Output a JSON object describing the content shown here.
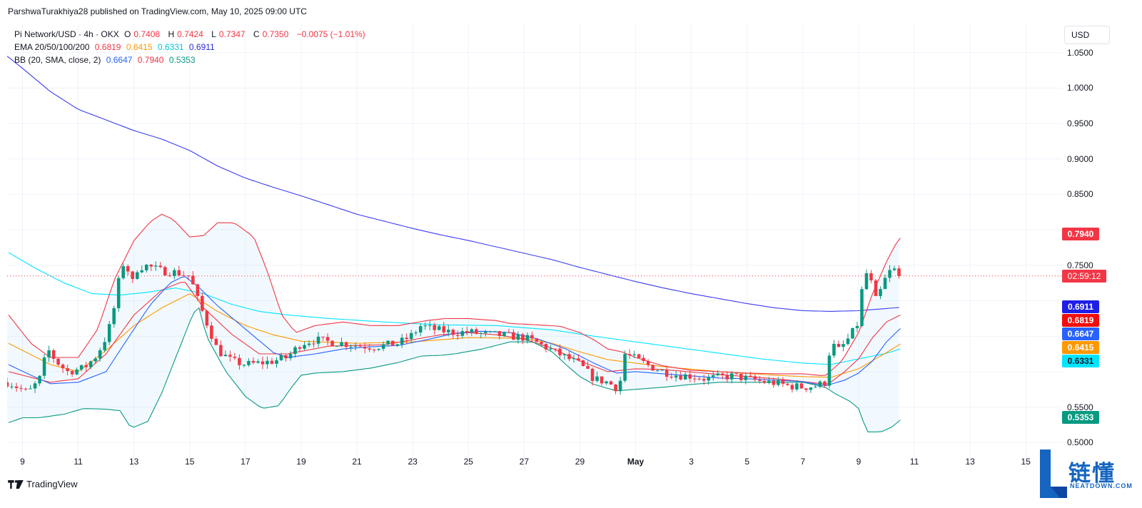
{
  "header": {
    "publisher_line": "ParshwaTurakhiya28 published on TradingView.com, May 10, 2025 09:00 UTC"
  },
  "legend": {
    "symbol": "Pi Network/USD · 4h · OKX",
    "ohlc": [
      {
        "label": "O",
        "value": "0.7408"
      },
      {
        "label": "H",
        "value": "0.7424"
      },
      {
        "label": "L",
        "value": "0.7347"
      },
      {
        "label": "C",
        "value": "0.7350"
      }
    ],
    "change": "−0.0075 (−1.01%)",
    "ema_label": "EMA 20/50/100/200",
    "ema_values": [
      "0.6819",
      "0.6415",
      "0.6331",
      "0.6911"
    ],
    "bb_label": "BB (20, SMA, close, 2)",
    "bb_values": [
      "0.6647",
      "0.7940",
      "0.5353"
    ]
  },
  "currency_button": "USD",
  "colors": {
    "up": "#089981",
    "down": "#f23645",
    "ema20": "#f23645",
    "ema50": "#ff9800",
    "ema100": "#00e5ff",
    "ema200": "#3b3bf5",
    "bb_basis": "#2962ff",
    "bb_upper": "#f23645",
    "bb_lower": "#089981"
  },
  "price_tags": {
    "bb_upper": "0.7940",
    "countdown": "02:59:12",
    "ema200": "0.6911",
    "ema20": "0.6819",
    "bb_basis": "0.6647",
    "ema50": "0.6415",
    "ema100": "0.6331",
    "bb_lower": "0.5353"
  },
  "footer": {
    "brand": "TradingView"
  },
  "watermark": {
    "name_cn": "链懂",
    "name_en": "NEATDOWN.COM"
  },
  "chart_data": {
    "type": "candlestick",
    "title": "Pi Network/USD · 4h · OKX",
    "ylim": [
      0.46,
      1.09
    ],
    "y_ticks": [
      "1.0500",
      "1.0000",
      "0.9500",
      "0.9000",
      "0.8500",
      "0.8000",
      "0.7500",
      "0.7000",
      "0.6500",
      "0.6000",
      "0.5500",
      "0.5000"
    ],
    "y_tick_values": [
      1.05,
      1.0,
      0.95,
      0.9,
      0.85,
      0.8,
      0.75,
      0.7,
      0.65,
      0.6,
      0.55,
      0.5
    ],
    "x_ticks": [
      "9",
      "11",
      "13",
      "15",
      "17",
      "19",
      "21",
      "23",
      "25",
      "27",
      "29",
      "May",
      "3",
      "5",
      "7",
      "9",
      "11",
      "13",
      "15"
    ],
    "x_tick_days": [
      0,
      2,
      4,
      6,
      8,
      10,
      12,
      14,
      16,
      18,
      20,
      22,
      24,
      26,
      28,
      30,
      32,
      34,
      36
    ],
    "x_start_day": -0.55,
    "x_end_day": 37.3,
    "last_price": 0.735,
    "close_anchors": [
      [
        -0.5,
        0.585
      ],
      [
        0.2,
        0.57
      ],
      [
        0.6,
        0.588
      ],
      [
        0.9,
        0.632
      ],
      [
        1.2,
        0.615
      ],
      [
        1.6,
        0.6
      ],
      [
        2.2,
        0.605
      ],
      [
        2.6,
        0.62
      ],
      [
        2.9,
        0.64
      ],
      [
        3.1,
        0.66
      ],
      [
        3.35,
        0.7
      ],
      [
        3.5,
        0.74
      ],
      [
        3.7,
        0.76
      ],
      [
        3.9,
        0.72
      ],
      [
        4.1,
        0.745
      ],
      [
        4.4,
        0.75
      ],
      [
        5,
        0.742
      ],
      [
        5.5,
        0.74
      ],
      [
        6,
        0.735
      ],
      [
        6.3,
        0.7
      ],
      [
        6.6,
        0.67
      ],
      [
        7,
        0.63
      ],
      [
        7.5,
        0.615
      ],
      [
        8,
        0.61
      ],
      [
        8.5,
        0.612
      ],
      [
        9,
        0.615
      ],
      [
        9.5,
        0.62
      ],
      [
        10,
        0.64
      ],
      [
        10.5,
        0.645
      ],
      [
        11,
        0.642
      ],
      [
        11.5,
        0.64
      ],
      [
        12,
        0.637
      ],
      [
        12.5,
        0.635
      ],
      [
        13,
        0.637
      ],
      [
        13.5,
        0.64
      ],
      [
        14,
        0.652
      ],
      [
        14.3,
        0.665
      ],
      [
        14.7,
        0.66
      ],
      [
        15,
        0.658
      ],
      [
        15.5,
        0.655
      ],
      [
        16,
        0.656
      ],
      [
        16.5,
        0.653
      ],
      [
        17,
        0.652
      ],
      [
        17.5,
        0.65
      ],
      [
        18,
        0.648
      ],
      [
        18.5,
        0.64
      ],
      [
        19,
        0.63
      ],
      [
        19.5,
        0.62
      ],
      [
        20,
        0.61
      ],
      [
        20.5,
        0.59
      ],
      [
        21,
        0.585
      ],
      [
        21.4,
        0.575
      ],
      [
        21.6,
        0.625
      ],
      [
        22,
        0.618
      ],
      [
        22.5,
        0.608
      ],
      [
        23,
        0.6
      ],
      [
        23.5,
        0.595
      ],
      [
        24,
        0.594
      ],
      [
        24.5,
        0.59
      ],
      [
        25,
        0.592
      ],
      [
        25.5,
        0.594
      ],
      [
        26,
        0.59
      ],
      [
        26.5,
        0.586
      ],
      [
        27,
        0.584
      ],
      [
        27.5,
        0.58
      ],
      [
        28,
        0.578
      ],
      [
        28.5,
        0.58
      ],
      [
        28.8,
        0.585
      ],
      [
        29.0,
        0.64
      ],
      [
        29.3,
        0.63
      ],
      [
        29.7,
        0.65
      ],
      [
        30,
        0.67
      ],
      [
        30.2,
        0.745
      ],
      [
        30.45,
        0.725
      ],
      [
        30.6,
        0.7
      ],
      [
        30.8,
        0.715
      ],
      [
        31,
        0.735
      ],
      [
        31.2,
        0.745
      ],
      [
        31.35,
        0.742
      ],
      [
        31.5,
        0.74
      ],
      [
        31.6,
        0.735
      ]
    ],
    "ema20_anchors": [
      [
        -0.5,
        0.6
      ],
      [
        1,
        0.585
      ],
      [
        2,
        0.59
      ],
      [
        3,
        0.625
      ],
      [
        4,
        0.68
      ],
      [
        5,
        0.715
      ],
      [
        5.8,
        0.728
      ],
      [
        6.5,
        0.69
      ],
      [
        7.5,
        0.653
      ],
      [
        8.5,
        0.625
      ],
      [
        9.5,
        0.625
      ],
      [
        11,
        0.636
      ],
      [
        13,
        0.638
      ],
      [
        14,
        0.645
      ],
      [
        15,
        0.652
      ],
      [
        16,
        0.655
      ],
      [
        17,
        0.652
      ],
      [
        18,
        0.646
      ],
      [
        19,
        0.633
      ],
      [
        20,
        0.615
      ],
      [
        21,
        0.6
      ],
      [
        22,
        0.604
      ],
      [
        23,
        0.603
      ],
      [
        25,
        0.596
      ],
      [
        27,
        0.59
      ],
      [
        28,
        0.586
      ],
      [
        28.9,
        0.582
      ],
      [
        29.5,
        0.6
      ],
      [
        30,
        0.618
      ],
      [
        30.5,
        0.648
      ],
      [
        31,
        0.67
      ],
      [
        31.6,
        0.6819
      ]
    ],
    "ema50_anchors": [
      [
        -0.5,
        0.64
      ],
      [
        1,
        0.61
      ],
      [
        2,
        0.6
      ],
      [
        3,
        0.63
      ],
      [
        4,
        0.665
      ],
      [
        5,
        0.69
      ],
      [
        6,
        0.71
      ],
      [
        7,
        0.685
      ],
      [
        8,
        0.665
      ],
      [
        9,
        0.652
      ],
      [
        10,
        0.643
      ],
      [
        12,
        0.64
      ],
      [
        14,
        0.642
      ],
      [
        16,
        0.648
      ],
      [
        18,
        0.647
      ],
      [
        19,
        0.64
      ],
      [
        20,
        0.628
      ],
      [
        21,
        0.617
      ],
      [
        22,
        0.612
      ],
      [
        23,
        0.607
      ],
      [
        25,
        0.6
      ],
      [
        27,
        0.595
      ],
      [
        28,
        0.593
      ],
      [
        29,
        0.592
      ],
      [
        30,
        0.604
      ],
      [
        31,
        0.627
      ],
      [
        31.6,
        0.6415
      ]
    ],
    "ema100_anchors": [
      [
        -0.5,
        0.768
      ],
      [
        0.5,
        0.745
      ],
      [
        1.5,
        0.725
      ],
      [
        2.5,
        0.71
      ],
      [
        3.5,
        0.708
      ],
      [
        4.5,
        0.712
      ],
      [
        5.5,
        0.718
      ],
      [
        6.5,
        0.71
      ],
      [
        7.5,
        0.695
      ],
      [
        8.5,
        0.685
      ],
      [
        9.5,
        0.68
      ],
      [
        11,
        0.675
      ],
      [
        13,
        0.67
      ],
      [
        15,
        0.666
      ],
      [
        17,
        0.665
      ],
      [
        19,
        0.659
      ],
      [
        20.5,
        0.65
      ],
      [
        22,
        0.642
      ],
      [
        23.5,
        0.634
      ],
      [
        25,
        0.626
      ],
      [
        26.5,
        0.618
      ],
      [
        28,
        0.612
      ],
      [
        29,
        0.61
      ],
      [
        30,
        0.618
      ],
      [
        31,
        0.626
      ],
      [
        31.6,
        0.6331
      ]
    ],
    "ema200_anchors": [
      [
        -0.55,
        1.045
      ],
      [
        0,
        1.028
      ],
      [
        1,
        0.995
      ],
      [
        2,
        0.97
      ],
      [
        3,
        0.955
      ],
      [
        4,
        0.94
      ],
      [
        5,
        0.928
      ],
      [
        6,
        0.912
      ],
      [
        7,
        0.89
      ],
      [
        8,
        0.873
      ],
      [
        9,
        0.86
      ],
      [
        10,
        0.848
      ],
      [
        11,
        0.835
      ],
      [
        12,
        0.822
      ],
      [
        13,
        0.812
      ],
      [
        14,
        0.802
      ],
      [
        15,
        0.793
      ],
      [
        16,
        0.785
      ],
      [
        17,
        0.776
      ],
      [
        18,
        0.767
      ],
      [
        19,
        0.758
      ],
      [
        20,
        0.747
      ],
      [
        21,
        0.737
      ],
      [
        22,
        0.727
      ],
      [
        23,
        0.718
      ],
      [
        24,
        0.71
      ],
      [
        25,
        0.703
      ],
      [
        26,
        0.696
      ],
      [
        27,
        0.69
      ],
      [
        28,
        0.686
      ],
      [
        29,
        0.685
      ],
      [
        30,
        0.686
      ],
      [
        31,
        0.689
      ],
      [
        31.6,
        0.6911
      ]
    ],
    "bb_upper_anchors": [
      [
        -0.5,
        0.68
      ],
      [
        0.3,
        0.64
      ],
      [
        1,
        0.62
      ],
      [
        2,
        0.62
      ],
      [
        2.7,
        0.66
      ],
      [
        3.3,
        0.73
      ],
      [
        4,
        0.785
      ],
      [
        4.6,
        0.812
      ],
      [
        5,
        0.822
      ],
      [
        5.4,
        0.815
      ],
      [
        6,
        0.79
      ],
      [
        6.5,
        0.792
      ],
      [
        7,
        0.81
      ],
      [
        7.6,
        0.81
      ],
      [
        8.3,
        0.79
      ],
      [
        8.8,
        0.74
      ],
      [
        9.3,
        0.68
      ],
      [
        9.8,
        0.655
      ],
      [
        10.5,
        0.665
      ],
      [
        11.5,
        0.67
      ],
      [
        12.5,
        0.665
      ],
      [
        13.5,
        0.665
      ],
      [
        14.5,
        0.672
      ],
      [
        15.2,
        0.675
      ],
      [
        16,
        0.675
      ],
      [
        17,
        0.672
      ],
      [
        17.5,
        0.668
      ],
      [
        18.5,
        0.666
      ],
      [
        19.3,
        0.664
      ],
      [
        20,
        0.655
      ],
      [
        20.5,
        0.645
      ],
      [
        21,
        0.632
      ],
      [
        21.5,
        0.628
      ],
      [
        22,
        0.62
      ],
      [
        23,
        0.608
      ],
      [
        24,
        0.602
      ],
      [
        25,
        0.6
      ],
      [
        26,
        0.598
      ],
      [
        27,
        0.597
      ],
      [
        28,
        0.597
      ],
      [
        28.8,
        0.594
      ],
      [
        29.4,
        0.615
      ],
      [
        30,
        0.655
      ],
      [
        30.5,
        0.71
      ],
      [
        31,
        0.755
      ],
      [
        31.3,
        0.778
      ],
      [
        31.6,
        0.794
      ]
    ],
    "bb_basis_anchors": [
      [
        -0.5,
        0.61
      ],
      [
        0.3,
        0.595
      ],
      [
        1,
        0.583
      ],
      [
        2,
        0.585
      ],
      [
        3,
        0.6
      ],
      [
        3.5,
        0.63
      ],
      [
        4,
        0.66
      ],
      [
        4.6,
        0.695
      ],
      [
        5.3,
        0.725
      ],
      [
        5.8,
        0.735
      ],
      [
        6.3,
        0.72
      ],
      [
        7,
        0.693
      ],
      [
        8,
        0.66
      ],
      [
        9,
        0.627
      ],
      [
        9.5,
        0.62
      ],
      [
        10.5,
        0.625
      ],
      [
        11.5,
        0.632
      ],
      [
        12.5,
        0.635
      ],
      [
        13.5,
        0.637
      ],
      [
        14.5,
        0.645
      ],
      [
        15.5,
        0.654
      ],
      [
        16.5,
        0.657
      ],
      [
        17.5,
        0.655
      ],
      [
        18.5,
        0.646
      ],
      [
        19.5,
        0.632
      ],
      [
        20.5,
        0.612
      ],
      [
        21.3,
        0.598
      ],
      [
        22,
        0.6
      ],
      [
        23,
        0.597
      ],
      [
        24,
        0.594
      ],
      [
        25,
        0.591
      ],
      [
        26,
        0.59
      ],
      [
        27,
        0.588
      ],
      [
        28,
        0.586
      ],
      [
        28.8,
        0.58
      ],
      [
        29.5,
        0.588
      ],
      [
        30,
        0.598
      ],
      [
        30.5,
        0.615
      ],
      [
        31,
        0.642
      ],
      [
        31.6,
        0.6647
      ]
    ],
    "bb_lower_anchors": [
      [
        -0.5,
        0.528
      ],
      [
        0,
        0.535
      ],
      [
        0.6,
        0.535
      ],
      [
        1.5,
        0.54
      ],
      [
        2.2,
        0.548
      ],
      [
        3,
        0.547
      ],
      [
        3.5,
        0.545
      ],
      [
        3.9,
        0.52
      ],
      [
        4.2,
        0.525
      ],
      [
        4.5,
        0.53
      ],
      [
        5,
        0.57
      ],
      [
        5.5,
        0.62
      ],
      [
        6,
        0.67
      ],
      [
        6.3,
        0.695
      ],
      [
        6.6,
        0.65
      ],
      [
        7.3,
        0.6
      ],
      [
        8,
        0.565
      ],
      [
        8.6,
        0.548
      ],
      [
        9.2,
        0.552
      ],
      [
        9.6,
        0.575
      ],
      [
        10,
        0.595
      ],
      [
        10.5,
        0.598
      ],
      [
        11.5,
        0.6
      ],
      [
        12.5,
        0.605
      ],
      [
        13.5,
        0.613
      ],
      [
        14.3,
        0.622
      ],
      [
        15,
        0.623
      ],
      [
        15.5,
        0.625
      ],
      [
        16.5,
        0.632
      ],
      [
        17.5,
        0.642
      ],
      [
        18.3,
        0.642
      ],
      [
        19,
        0.628
      ],
      [
        19.5,
        0.61
      ],
      [
        20,
        0.593
      ],
      [
        20.5,
        0.582
      ],
      [
        21.3,
        0.573
      ],
      [
        22,
        0.575
      ],
      [
        23,
        0.578
      ],
      [
        24,
        0.582
      ],
      [
        25,
        0.585
      ],
      [
        26,
        0.585
      ],
      [
        27,
        0.585
      ],
      [
        28,
        0.585
      ],
      [
        28.8,
        0.578
      ],
      [
        29.2,
        0.568
      ],
      [
        29.7,
        0.558
      ],
      [
        30,
        0.548
      ],
      [
        30.3,
        0.515
      ],
      [
        30.8,
        0.515
      ],
      [
        31.2,
        0.522
      ],
      [
        31.6,
        0.5353
      ]
    ]
  }
}
